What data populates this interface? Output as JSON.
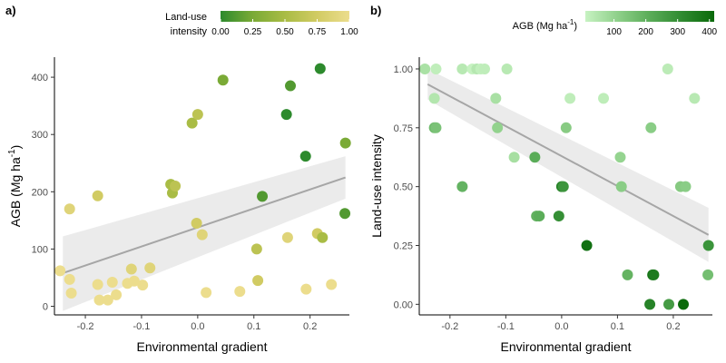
{
  "chart_data": [
    {
      "type": "scatter",
      "panel_label": "a)",
      "xlabel": "Environmental gradient",
      "ylabel": "AGB (Mg ha",
      "ylabel_sup": "-1",
      "ylabel_close": ")",
      "xlim": [
        -0.255,
        0.27
      ],
      "ylim": [
        -15,
        435
      ],
      "x_ticks": [
        -0.2,
        -0.1,
        0.0,
        0.1,
        0.2
      ],
      "x_tick_labels": [
        "-0.2",
        "-0.1",
        "0.0",
        "0.1",
        "0.2"
      ],
      "y_ticks": [
        0,
        100,
        200,
        300,
        400
      ],
      "y_tick_labels": [
        "0",
        "100",
        "200",
        "300",
        "400"
      ],
      "grid": false,
      "color_variable": "Land-use intensity",
      "legend": {
        "title_lines": [
          "Land-use",
          "intensity"
        ],
        "placement": "top",
        "range": [
          0,
          1
        ],
        "ticks": [
          0.0,
          0.25,
          0.5,
          0.75,
          1.0
        ],
        "tick_labels": [
          "0.00",
          "0.25",
          "0.50",
          "0.75",
          "1.00"
        ],
        "colors": [
          "#2d8a2d",
          "#7aaa36",
          "#a9bc45",
          "#d1cb63",
          "#ecdd8d"
        ]
      },
      "trend": {
        "x": [
          -0.24,
          0.263
        ],
        "y": [
          58,
          225
        ],
        "ci_upper": [
          122,
          262
        ],
        "ci_lower": [
          -8,
          188
        ],
        "color": "#a6a6a6",
        "band_color": "#ebebeb"
      },
      "points": [
        {
          "x": -0.245,
          "y": 62,
          "c": 1.0
        },
        {
          "x": -0.228,
          "y": 47,
          "c": 1.0
        },
        {
          "x": -0.228,
          "y": 170,
          "c": 0.88
        },
        {
          "x": -0.225,
          "y": 23,
          "c": 1.0
        },
        {
          "x": -0.178,
          "y": 38,
          "c": 1.0
        },
        {
          "x": -0.178,
          "y": 193,
          "c": 0.75
        },
        {
          "x": -0.175,
          "y": 11,
          "c": 1.0
        },
        {
          "x": -0.16,
          "y": 11,
          "c": 1.0
        },
        {
          "x": -0.152,
          "y": 42,
          "c": 1.0
        },
        {
          "x": -0.145,
          "y": 20,
          "c": 1.0
        },
        {
          "x": -0.125,
          "y": 40,
          "c": 1.0
        },
        {
          "x": -0.118,
          "y": 65,
          "c": 0.88
        },
        {
          "x": -0.113,
          "y": 44,
          "c": 1.0
        },
        {
          "x": -0.098,
          "y": 37,
          "c": 1.0
        },
        {
          "x": -0.085,
          "y": 67,
          "c": 0.88
        },
        {
          "x": -0.048,
          "y": 213,
          "c": 0.5
        },
        {
          "x": -0.045,
          "y": 198,
          "c": 0.5
        },
        {
          "x": -0.04,
          "y": 210,
          "c": 0.62
        },
        {
          "x": -0.01,
          "y": 320,
          "c": 0.5
        },
        {
          "x": 0.0,
          "y": 335,
          "c": 0.62
        },
        {
          "x": -0.002,
          "y": 145,
          "c": 0.75
        },
        {
          "x": 0.008,
          "y": 125,
          "c": 0.88
        },
        {
          "x": 0.015,
          "y": 24,
          "c": 1.0
        },
        {
          "x": 0.045,
          "y": 395,
          "c": 0.25
        },
        {
          "x": 0.075,
          "y": 26,
          "c": 1.0
        },
        {
          "x": 0.105,
          "y": 100,
          "c": 0.62
        },
        {
          "x": 0.107,
          "y": 45,
          "c": 0.75
        },
        {
          "x": 0.115,
          "y": 192,
          "c": 0.12
        },
        {
          "x": 0.158,
          "y": 335,
          "c": 0.0
        },
        {
          "x": 0.16,
          "y": 120,
          "c": 0.88
        },
        {
          "x": 0.165,
          "y": 385,
          "c": 0.12
        },
        {
          "x": 0.192,
          "y": 262,
          "c": 0.0
        },
        {
          "x": 0.193,
          "y": 30,
          "c": 1.0
        },
        {
          "x": 0.213,
          "y": 127,
          "c": 0.75
        },
        {
          "x": 0.218,
          "y": 415,
          "c": 0.0
        },
        {
          "x": 0.222,
          "y": 120,
          "c": 0.5
        },
        {
          "x": 0.238,
          "y": 38,
          "c": 1.0
        },
        {
          "x": 0.262,
          "y": 162,
          "c": 0.12
        },
        {
          "x": 0.263,
          "y": 285,
          "c": 0.25
        }
      ]
    },
    {
      "type": "scatter",
      "panel_label": "b)",
      "xlabel": "Environmental gradient",
      "ylabel": "Land-use intensity",
      "xlim": [
        -0.255,
        0.27
      ],
      "ylim": [
        -0.045,
        1.05
      ],
      "x_ticks": [
        -0.2,
        -0.1,
        0.0,
        0.1,
        0.2
      ],
      "x_tick_labels": [
        "-0.2",
        "-0.1",
        "0.0",
        "0.1",
        "0.2"
      ],
      "y_ticks": [
        0.0,
        0.25,
        0.5,
        0.75,
        1.0
      ],
      "y_tick_labels": [
        "0.00",
        "0.25",
        "0.50",
        "0.75",
        "1.00"
      ],
      "grid": false,
      "color_variable": "AGB",
      "legend": {
        "title": "AGB (Mg ha",
        "title_sup": "-1",
        "title_close": ")",
        "placement": "top",
        "range": [
          10,
          415
        ],
        "ticks": [
          100,
          200,
          300,
          400
        ],
        "tick_labels": [
          "100",
          "200",
          "300",
          "400"
        ],
        "colors": [
          "#c7f2c2",
          "#8fd08a",
          "#5aac58",
          "#2f8a30",
          "#0a6a0a"
        ]
      },
      "trend": {
        "x": [
          -0.24,
          0.263
        ],
        "y": [
          0.935,
          0.295
        ],
        "ci_upper": [
          1.0,
          0.41
        ],
        "ci_lower": [
          0.87,
          0.18
        ],
        "color": "#a6a6a6",
        "band_color": "#ebebeb"
      },
      "points": [
        {
          "x": -0.245,
          "y": 1.0,
          "c": 62
        },
        {
          "x": -0.228,
          "y": 0.875,
          "c": 47
        },
        {
          "x": -0.228,
          "y": 0.75,
          "c": 170
        },
        {
          "x": -0.225,
          "y": 1.0,
          "c": 23
        },
        {
          "x": -0.225,
          "y": 0.75,
          "c": 150
        },
        {
          "x": -0.178,
          "y": 1.0,
          "c": 38
        },
        {
          "x": -0.178,
          "y": 0.5,
          "c": 193
        },
        {
          "x": -0.16,
          "y": 1.0,
          "c": 11
        },
        {
          "x": -0.152,
          "y": 1.0,
          "c": 42
        },
        {
          "x": -0.145,
          "y": 1.0,
          "c": 20
        },
        {
          "x": -0.138,
          "y": 1.0,
          "c": 25
        },
        {
          "x": -0.118,
          "y": 0.875,
          "c": 65
        },
        {
          "x": -0.115,
          "y": 0.75,
          "c": 105
        },
        {
          "x": -0.098,
          "y": 1.0,
          "c": 37
        },
        {
          "x": -0.085,
          "y": 0.625,
          "c": 67
        },
        {
          "x": -0.048,
          "y": 0.625,
          "c": 213
        },
        {
          "x": -0.045,
          "y": 0.375,
          "c": 198
        },
        {
          "x": -0.04,
          "y": 0.375,
          "c": 210
        },
        {
          "x": -0.005,
          "y": 0.375,
          "c": 300
        },
        {
          "x": 0.0,
          "y": 0.5,
          "c": 335
        },
        {
          "x": 0.003,
          "y": 0.5,
          "c": 280
        },
        {
          "x": 0.008,
          "y": 0.75,
          "c": 125
        },
        {
          "x": 0.015,
          "y": 0.875,
          "c": 24
        },
        {
          "x": 0.045,
          "y": 0.25,
          "c": 395
        },
        {
          "x": 0.075,
          "y": 0.875,
          "c": 26
        },
        {
          "x": 0.105,
          "y": 0.625,
          "c": 100
        },
        {
          "x": 0.107,
          "y": 0.5,
          "c": 120
        },
        {
          "x": 0.118,
          "y": 0.125,
          "c": 192
        },
        {
          "x": 0.158,
          "y": 0.0,
          "c": 335
        },
        {
          "x": 0.16,
          "y": 0.75,
          "c": 120
        },
        {
          "x": 0.163,
          "y": 0.125,
          "c": 385
        },
        {
          "x": 0.165,
          "y": 0.125,
          "c": 360
        },
        {
          "x": 0.192,
          "y": 0.0,
          "c": 262
        },
        {
          "x": 0.19,
          "y": 1.0,
          "c": 30
        },
        {
          "x": 0.213,
          "y": 0.5,
          "c": 127
        },
        {
          "x": 0.218,
          "y": 0.0,
          "c": 415
        },
        {
          "x": 0.222,
          "y": 0.5,
          "c": 120
        },
        {
          "x": 0.238,
          "y": 0.875,
          "c": 38
        },
        {
          "x": 0.262,
          "y": 0.125,
          "c": 162
        },
        {
          "x": 0.263,
          "y": 0.25,
          "c": 285
        }
      ]
    }
  ]
}
